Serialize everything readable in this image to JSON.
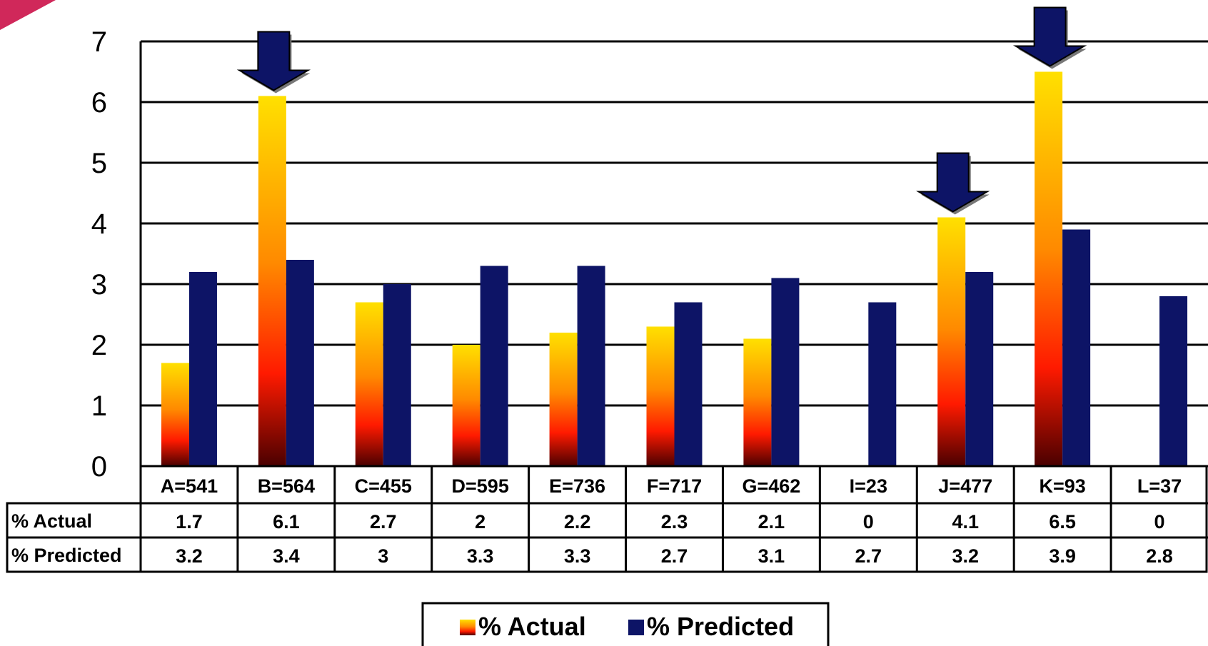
{
  "colors": {
    "predicted": "#0d1466",
    "actual_top": "#ffe000",
    "actual_mid": "#ff8a00",
    "actual_low": "#ff1a00",
    "actual_bottom": "#4a0000",
    "arrow": "#0d1466",
    "corner_accent": "#d0285a"
  },
  "chart_data": {
    "type": "bar",
    "categories": [
      "A=541",
      "B=564",
      "C=455",
      "D=595",
      "E=736",
      "F=717",
      "G=462",
      "I=23",
      "J=477",
      "K=93",
      "L=37"
    ],
    "series": [
      {
        "name": "% Actual",
        "values": [
          1.7,
          6.1,
          2.7,
          2,
          2.2,
          2.3,
          2.1,
          0,
          4.1,
          6.5,
          0
        ],
        "labels": [
          "1.7",
          "6.1",
          "2.7",
          "2",
          "2.2",
          "2.3",
          "2.1",
          "0",
          "4.1",
          "6.5",
          "0"
        ]
      },
      {
        "name": "% Predicted",
        "values": [
          3.2,
          3.4,
          3,
          3.3,
          3.3,
          2.7,
          3.1,
          2.7,
          3.2,
          3.9,
          2.8
        ],
        "labels": [
          "3.2",
          "3.4",
          "3",
          "3.3",
          "3.3",
          "2.7",
          "3.1",
          "2.7",
          "3.2",
          "3.9",
          "2.8"
        ]
      }
    ],
    "yticks": [
      "0",
      "1",
      "2",
      "3",
      "4",
      "5",
      "6",
      "7"
    ],
    "ylim": [
      0,
      7
    ],
    "grid": true,
    "legend": "bottom-center",
    "highlighted_categories": [
      "B=564",
      "J=477",
      "K=93"
    ],
    "table_row_labels": [
      "% Actual",
      "% Predicted"
    ],
    "legend_labels": [
      "% Actual",
      "% Predicted"
    ]
  }
}
